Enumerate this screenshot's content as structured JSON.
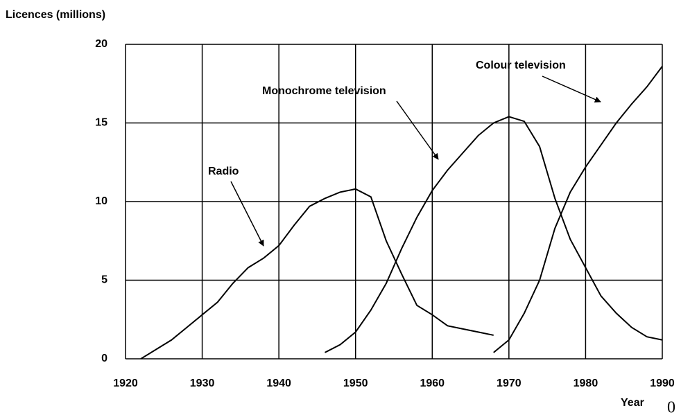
{
  "chart_data": {
    "type": "line",
    "y_label": "Licences (millions)",
    "x_label": "Year",
    "corner_text": "0",
    "annotations": [
      "Radio",
      "Monochrome television",
      "Colour television"
    ],
    "x": [
      1920,
      1922,
      1924,
      1926,
      1928,
      1930,
      1932,
      1934,
      1936,
      1938,
      1940,
      1942,
      1944,
      1946,
      1948,
      1950,
      1952,
      1954,
      1956,
      1958,
      1960,
      1962,
      1964,
      1966,
      1968,
      1970,
      1972,
      1974,
      1976,
      1978,
      1980,
      1982,
      1984,
      1986,
      1988,
      1990
    ],
    "series": [
      {
        "name": "Radio",
        "color": "#000000",
        "values": [
          null,
          0,
          0.6,
          1.2,
          2,
          2.8,
          3.6,
          4.8,
          5.8,
          6.4,
          7.2,
          8.5,
          9.7,
          10.2,
          10.6,
          10.8,
          10.3,
          7.5,
          5.4,
          3.4,
          2.8,
          2.1,
          1.9,
          1.7,
          1.5,
          null,
          null,
          null,
          null,
          null,
          null,
          null,
          null,
          null,
          null,
          null
        ]
      },
      {
        "name": "Monochrome television",
        "color": "#000000",
        "values": [
          null,
          null,
          null,
          null,
          null,
          null,
          null,
          null,
          null,
          null,
          null,
          null,
          null,
          0.4,
          0.9,
          1.7,
          3.1,
          4.8,
          7.0,
          9.0,
          10.7,
          12.0,
          13.1,
          14.2,
          15.0,
          15.4,
          15.1,
          13.5,
          10.2,
          7.6,
          5.8,
          4.0,
          2.9,
          2.0,
          1.4,
          1.2
        ]
      },
      {
        "name": "Colour television",
        "color": "#000000",
        "values": [
          null,
          null,
          null,
          null,
          null,
          null,
          null,
          null,
          null,
          null,
          null,
          null,
          null,
          null,
          null,
          null,
          null,
          null,
          null,
          null,
          null,
          null,
          null,
          null,
          0.4,
          1.2,
          2.9,
          5.0,
          8.3,
          10.6,
          12.2,
          13.6,
          15.0,
          16.2,
          17.3,
          18.6
        ]
      }
    ],
    "xlim": [
      1920,
      1990
    ],
    "xticks": [
      1920,
      1930,
      1940,
      1950,
      1960,
      1970,
      1980,
      1990
    ],
    "ylim": [
      0,
      20
    ],
    "yticks": [
      0,
      5,
      10,
      15,
      20
    ],
    "grid": true
  }
}
